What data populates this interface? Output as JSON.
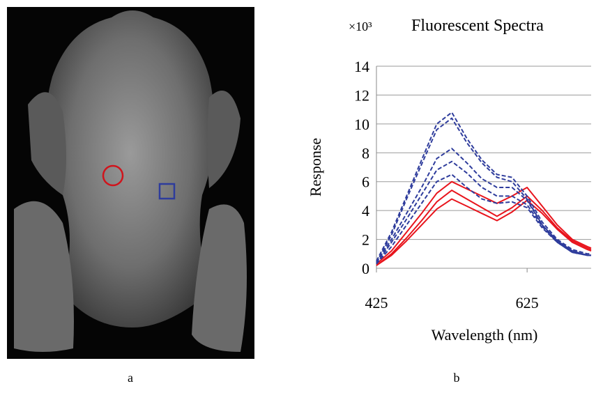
{
  "chart_data": {
    "type": "line",
    "title": "Fluorescent Spectra",
    "y_multiplier": "×10³",
    "xlabel": "Wavelength (nm)",
    "ylabel": "Response",
    "panel_labels": [
      "a",
      "b"
    ],
    "x": [
      425,
      445,
      465,
      485,
      505,
      525,
      545,
      565,
      585,
      605,
      625,
      645,
      665,
      685,
      705,
      710
    ],
    "xlim": [
      425,
      710
    ],
    "xticks": [
      425,
      625
    ],
    "ylim": [
      0,
      14
    ],
    "yticks": [
      0,
      2,
      4,
      6,
      8,
      10,
      12,
      14
    ],
    "grid": true,
    "series": [
      {
        "color": "#e8141c",
        "dashed": false,
        "values": [
          0.3,
          1.2,
          2.5,
          3.8,
          5.2,
          6.0,
          5.5,
          5.0,
          4.5,
          5.0,
          5.6,
          4.3,
          3.0,
          2.0,
          1.5,
          1.4
        ]
      },
      {
        "color": "#e8141c",
        "dashed": false,
        "values": [
          0.2,
          1.0,
          2.1,
          3.3,
          4.6,
          5.4,
          4.8,
          4.2,
          3.6,
          4.2,
          5.0,
          4.0,
          2.8,
          1.9,
          1.4,
          1.3
        ]
      },
      {
        "color": "#e8141c",
        "dashed": false,
        "values": [
          0.2,
          0.9,
          1.9,
          3.0,
          4.1,
          4.8,
          4.3,
          3.8,
          3.3,
          3.9,
          4.7,
          3.8,
          2.7,
          1.8,
          1.3,
          1.2
        ]
      },
      {
        "color": "#2e3c9c",
        "dashed": true,
        "values": [
          0.3,
          1.5,
          3.0,
          4.5,
          6.0,
          6.5,
          5.6,
          4.8,
          4.5,
          4.6,
          4.2,
          2.8,
          1.8,
          1.1,
          0.9,
          0.9
        ]
      },
      {
        "color": "#2e3c9c",
        "dashed": true,
        "values": [
          0.3,
          1.8,
          3.4,
          5.1,
          6.8,
          7.4,
          6.6,
          5.6,
          5.0,
          5.0,
          4.4,
          2.9,
          1.8,
          1.1,
          0.9,
          0.9
        ]
      },
      {
        "color": "#2e3c9c",
        "dashed": true,
        "values": [
          0.4,
          2.0,
          3.8,
          5.6,
          7.6,
          8.3,
          7.3,
          6.2,
          5.6,
          5.6,
          4.7,
          3.0,
          1.9,
          1.2,
          0.9,
          0.9
        ]
      },
      {
        "color": "#2e3c9c",
        "dashed": true,
        "values": [
          0.4,
          2.3,
          4.8,
          7.2,
          9.6,
          10.4,
          8.7,
          7.3,
          6.3,
          6.0,
          4.8,
          3.0,
          1.9,
          1.2,
          0.9,
          0.9
        ]
      },
      {
        "color": "#2e3c9c",
        "dashed": true,
        "values": [
          0.5,
          2.5,
          5.0,
          7.5,
          10.0,
          10.8,
          9.0,
          7.5,
          6.5,
          6.3,
          5.0,
          3.2,
          2.0,
          1.3,
          1.0,
          1.0
        ]
      }
    ]
  }
}
